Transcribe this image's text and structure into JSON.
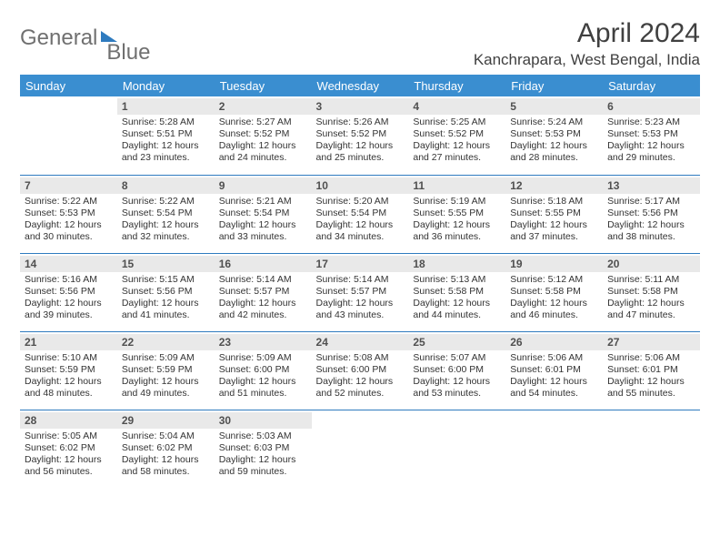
{
  "logo": {
    "text_a": "General",
    "text_b": "Blue"
  },
  "title": "April 2024",
  "location": "Kanchrapara, West Bengal, India",
  "colors": {
    "header_blue": "#3a8ed0",
    "row_border": "#2f7bbf",
    "daynum_bg": "#e9e9e9",
    "text": "#333333",
    "logo_text": "#707070"
  },
  "weekdays": [
    "Sunday",
    "Monday",
    "Tuesday",
    "Wednesday",
    "Thursday",
    "Friday",
    "Saturday"
  ],
  "weeks": [
    [
      {
        "empty": true
      },
      {
        "n": "1",
        "sr": "5:28 AM",
        "ss": "5:51 PM",
        "dl": "12 hours and 23 minutes."
      },
      {
        "n": "2",
        "sr": "5:27 AM",
        "ss": "5:52 PM",
        "dl": "12 hours and 24 minutes."
      },
      {
        "n": "3",
        "sr": "5:26 AM",
        "ss": "5:52 PM",
        "dl": "12 hours and 25 minutes."
      },
      {
        "n": "4",
        "sr": "5:25 AM",
        "ss": "5:52 PM",
        "dl": "12 hours and 27 minutes."
      },
      {
        "n": "5",
        "sr": "5:24 AM",
        "ss": "5:53 PM",
        "dl": "12 hours and 28 minutes."
      },
      {
        "n": "6",
        "sr": "5:23 AM",
        "ss": "5:53 PM",
        "dl": "12 hours and 29 minutes."
      }
    ],
    [
      {
        "n": "7",
        "sr": "5:22 AM",
        "ss": "5:53 PM",
        "dl": "12 hours and 30 minutes."
      },
      {
        "n": "8",
        "sr": "5:22 AM",
        "ss": "5:54 PM",
        "dl": "12 hours and 32 minutes."
      },
      {
        "n": "9",
        "sr": "5:21 AM",
        "ss": "5:54 PM",
        "dl": "12 hours and 33 minutes."
      },
      {
        "n": "10",
        "sr": "5:20 AM",
        "ss": "5:54 PM",
        "dl": "12 hours and 34 minutes."
      },
      {
        "n": "11",
        "sr": "5:19 AM",
        "ss": "5:55 PM",
        "dl": "12 hours and 36 minutes."
      },
      {
        "n": "12",
        "sr": "5:18 AM",
        "ss": "5:55 PM",
        "dl": "12 hours and 37 minutes."
      },
      {
        "n": "13",
        "sr": "5:17 AM",
        "ss": "5:56 PM",
        "dl": "12 hours and 38 minutes."
      }
    ],
    [
      {
        "n": "14",
        "sr": "5:16 AM",
        "ss": "5:56 PM",
        "dl": "12 hours and 39 minutes."
      },
      {
        "n": "15",
        "sr": "5:15 AM",
        "ss": "5:56 PM",
        "dl": "12 hours and 41 minutes."
      },
      {
        "n": "16",
        "sr": "5:14 AM",
        "ss": "5:57 PM",
        "dl": "12 hours and 42 minutes."
      },
      {
        "n": "17",
        "sr": "5:14 AM",
        "ss": "5:57 PM",
        "dl": "12 hours and 43 minutes."
      },
      {
        "n": "18",
        "sr": "5:13 AM",
        "ss": "5:58 PM",
        "dl": "12 hours and 44 minutes."
      },
      {
        "n": "19",
        "sr": "5:12 AM",
        "ss": "5:58 PM",
        "dl": "12 hours and 46 minutes."
      },
      {
        "n": "20",
        "sr": "5:11 AM",
        "ss": "5:58 PM",
        "dl": "12 hours and 47 minutes."
      }
    ],
    [
      {
        "n": "21",
        "sr": "5:10 AM",
        "ss": "5:59 PM",
        "dl": "12 hours and 48 minutes."
      },
      {
        "n": "22",
        "sr": "5:09 AM",
        "ss": "5:59 PM",
        "dl": "12 hours and 49 minutes."
      },
      {
        "n": "23",
        "sr": "5:09 AM",
        "ss": "6:00 PM",
        "dl": "12 hours and 51 minutes."
      },
      {
        "n": "24",
        "sr": "5:08 AM",
        "ss": "6:00 PM",
        "dl": "12 hours and 52 minutes."
      },
      {
        "n": "25",
        "sr": "5:07 AM",
        "ss": "6:00 PM",
        "dl": "12 hours and 53 minutes."
      },
      {
        "n": "26",
        "sr": "5:06 AM",
        "ss": "6:01 PM",
        "dl": "12 hours and 54 minutes."
      },
      {
        "n": "27",
        "sr": "5:06 AM",
        "ss": "6:01 PM",
        "dl": "12 hours and 55 minutes."
      }
    ],
    [
      {
        "n": "28",
        "sr": "5:05 AM",
        "ss": "6:02 PM",
        "dl": "12 hours and 56 minutes."
      },
      {
        "n": "29",
        "sr": "5:04 AM",
        "ss": "6:02 PM",
        "dl": "12 hours and 58 minutes."
      },
      {
        "n": "30",
        "sr": "5:03 AM",
        "ss": "6:03 PM",
        "dl": "12 hours and 59 minutes."
      },
      {
        "empty": true
      },
      {
        "empty": true
      },
      {
        "empty": true
      },
      {
        "empty": true
      }
    ]
  ],
  "labels": {
    "sunrise": "Sunrise: ",
    "sunset": "Sunset: ",
    "daylight": "Daylight: "
  }
}
